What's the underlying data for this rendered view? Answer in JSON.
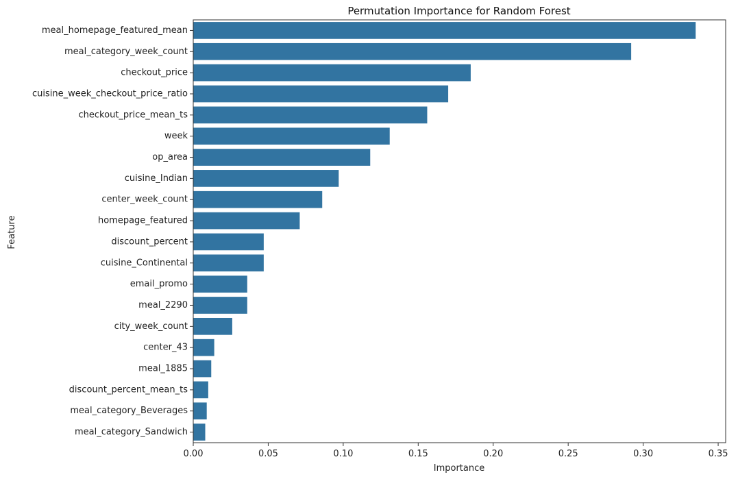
{
  "chart_data": {
    "type": "bar",
    "orientation": "horizontal",
    "title": "Permutation Importance for Random Forest",
    "xlabel": "Importance",
    "ylabel": "Feature",
    "xlim": [
      0,
      0.355
    ],
    "xticks": [
      "0.00",
      "0.05",
      "0.10",
      "0.15",
      "0.20",
      "0.25",
      "0.30",
      "0.35"
    ],
    "xtick_values": [
      0,
      0.05,
      0.1,
      0.15,
      0.2,
      0.25,
      0.3,
      0.35
    ],
    "grid": false,
    "bar_color": "#3274a1",
    "categories": [
      "meal_homepage_featured_mean",
      "meal_category_week_count",
      "checkout_price",
      "cuisine_week_checkout_price_ratio",
      "checkout_price_mean_ts",
      "week",
      "op_area",
      "cuisine_Indian",
      "center_week_count",
      "homepage_featured",
      "discount_percent",
      "cuisine_Continental",
      "email_promo",
      "meal_2290",
      "city_week_count",
      "center_43",
      "meal_1885",
      "discount_percent_mean_ts",
      "meal_category_Beverages",
      "meal_category_Sandwich"
    ],
    "values": [
      0.335,
      0.292,
      0.185,
      0.17,
      0.156,
      0.131,
      0.118,
      0.097,
      0.086,
      0.071,
      0.047,
      0.047,
      0.036,
      0.036,
      0.026,
      0.014,
      0.012,
      0.01,
      0.009,
      0.008
    ]
  }
}
